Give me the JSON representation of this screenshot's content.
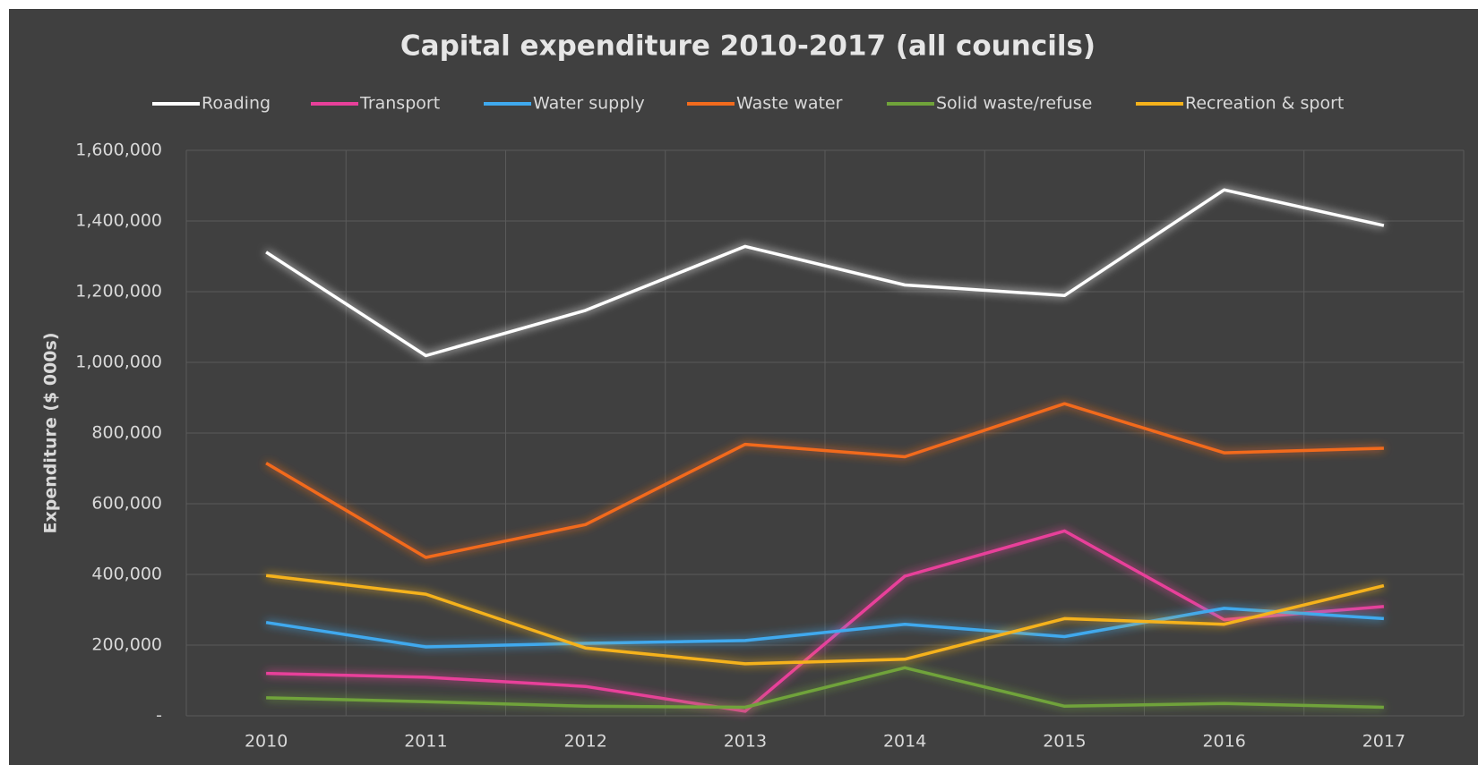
{
  "chart_data": {
    "type": "line",
    "title": "Capital expenditure 2010-2017 (all councils)",
    "y_label": "Expenditure ($ 000s)",
    "categories": [
      "2010",
      "2011",
      "2012",
      "2013",
      "2014",
      "2015",
      "2016",
      "2017"
    ],
    "series": [
      {
        "name": "Roading",
        "color": "#ffffff",
        "values": [
          1312000,
          1019000,
          1147000,
          1328000,
          1219000,
          1189000,
          1488000,
          1387000
        ]
      },
      {
        "name": "Transport",
        "color": "#e8409a",
        "values": [
          120000,
          109000,
          83000,
          13000,
          395000,
          523000,
          272000,
          309000
        ]
      },
      {
        "name": "Water supply",
        "color": "#3fa9ee",
        "values": [
          264000,
          195000,
          205000,
          213000,
          259000,
          224000,
          304000,
          275000
        ]
      },
      {
        "name": "Waste water",
        "color": "#f26b1d",
        "values": [
          715000,
          448000,
          541000,
          768000,
          733000,
          883000,
          744000,
          757000
        ]
      },
      {
        "name": "Solid waste/refuse",
        "color": "#70a33a",
        "values": [
          51000,
          40000,
          27000,
          24000,
          136000,
          27000,
          35000,
          24000
        ]
      },
      {
        "name": "Recreation & sport",
        "color": "#f5b21b",
        "values": [
          397000,
          344000,
          192000,
          147000,
          160000,
          275000,
          259000,
          368000
        ]
      }
    ],
    "ylim": [
      0,
      1600000
    ],
    "yticks": [
      {
        "value": 0,
        "label": "-"
      },
      {
        "value": 200000,
        "label": "200,000"
      },
      {
        "value": 400000,
        "label": "400,000"
      },
      {
        "value": 600000,
        "label": "600,000"
      },
      {
        "value": 800000,
        "label": "800,000"
      },
      {
        "value": 1000000,
        "label": "1,000,000"
      },
      {
        "value": 1200000,
        "label": "1,200,000"
      },
      {
        "value": 1400000,
        "label": "1,400,000"
      },
      {
        "value": 1600000,
        "label": "1,600,000"
      }
    ],
    "grid": true,
    "legend": "top"
  }
}
